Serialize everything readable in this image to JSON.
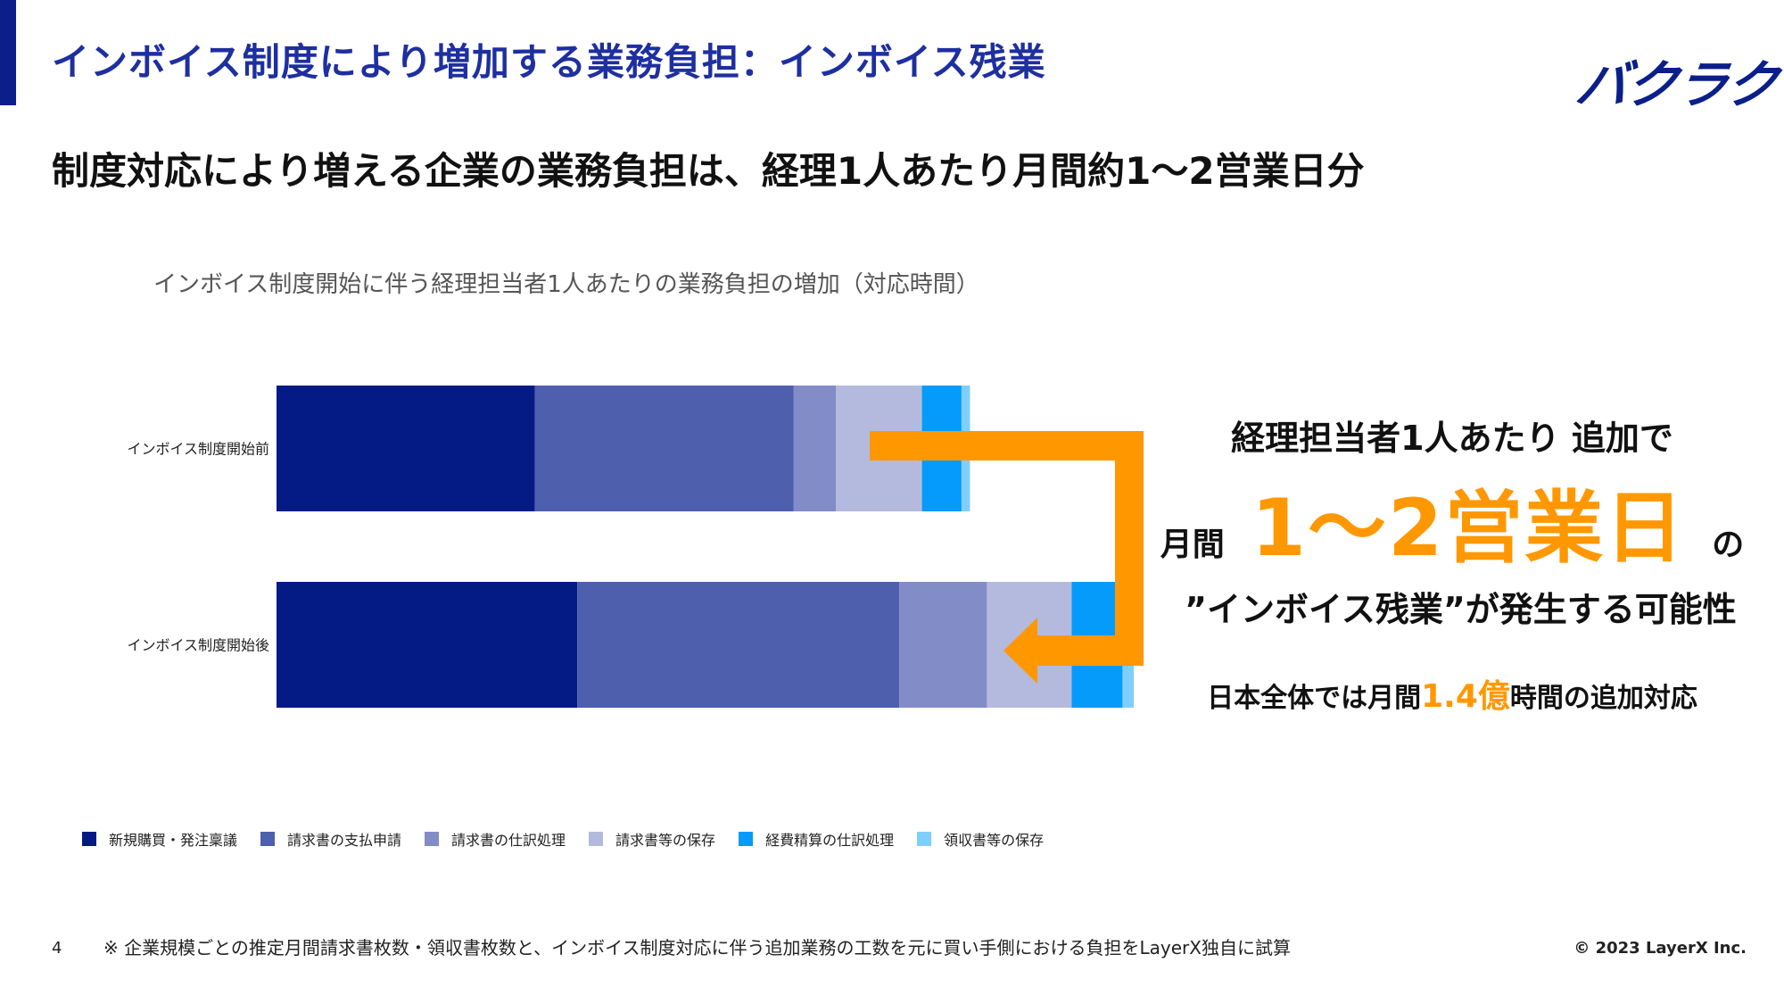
{
  "header": {
    "title": "インボイス制度により増加する業務負担：インボイス残業",
    "logo_text": "バクラク",
    "accent_color": "#0b1f8a"
  },
  "subtitle": "制度対応により増える企業の業務負担は、経理1人あたり月間約1～2営業日分",
  "chart_data": {
    "type": "bar",
    "orientation": "horizontal",
    "stacked": true,
    "title": "インボイス制度開始に伴う経理担当者1人あたりの業務負担の増加（対応時間）",
    "categories": [
      "インボイス制度開始前",
      "インボイス制度開始後"
    ],
    "series": [
      {
        "name": "新規購買・発注稟議",
        "color": "#041a84",
        "values": [
          18.3,
          21.3
        ]
      },
      {
        "name": "請求書の支払申請",
        "color": "#4e5fad",
        "values": [
          18.3,
          22.8
        ]
      },
      {
        "name": "請求書の仕訳処理",
        "color": "#828cc6",
        "values": [
          3.0,
          6.2
        ]
      },
      {
        "name": "請求書等の保存",
        "color": "#b3badd",
        "values": [
          6.1,
          6.0
        ]
      },
      {
        "name": "経費精算の仕訳処理",
        "color": "#049bfb",
        "values": [
          2.8,
          3.6
        ]
      },
      {
        "name": "領収書等の保存",
        "color": "#80cefd",
        "values": [
          0.6,
          0.8
        ]
      }
    ],
    "xlim": [
      0,
      60
    ],
    "grid": false,
    "legend": "bottom"
  },
  "callout": {
    "line1": "経理担当者1人あたり 追加で",
    "line2_prefix": "月間",
    "line2_highlight": "1～2営業日",
    "line2_suffix": "の",
    "line3": "”インボイス残業”が発生する可能性",
    "line4_prefix": "日本全体では月間",
    "line4_highlight": "1.4億",
    "line4_suffix": "時間の追加対応",
    "arrow_color": "#ff9800"
  },
  "footer": {
    "page_number": "4",
    "footnote": "※ 企業規模ごとの推定月間請求書枚数・領収書枚数と、インボイス制度対応に伴う追加業務の工数を元に買い手側における負担をLayerX独自に試算",
    "copyright": "© 2023 LayerX Inc."
  }
}
